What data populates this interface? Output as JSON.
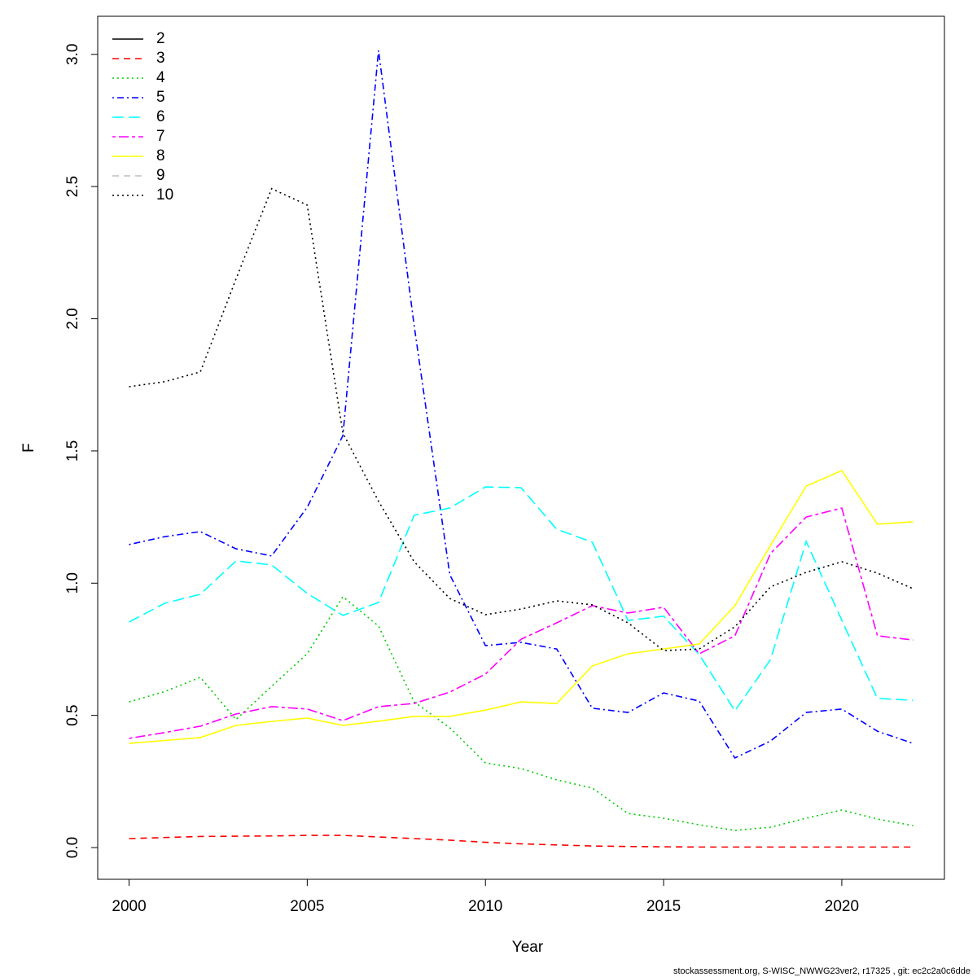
{
  "chart_data": {
    "type": "line",
    "x_label": "Year",
    "y_label": "F",
    "footnote": "stockassessment.org, S-WISC_NWWG23ver2, r17325 , git: ec2c2a0c6dde",
    "x": [
      2000,
      2001,
      2002,
      2003,
      2004,
      2005,
      2006,
      2007,
      2008,
      2009,
      2010,
      2011,
      2012,
      2013,
      2014,
      2015,
      2016,
      2017,
      2018,
      2019,
      2020,
      2021,
      2022
    ],
    "xlim": [
      1999.12,
      2022.88
    ],
    "xticks": [
      2000,
      2005,
      2010,
      2015,
      2020
    ],
    "ylim": [
      -0.12,
      3.144
    ],
    "yticks": [
      {
        "value": 0,
        "label": "0.0"
      },
      {
        "value": 0.5,
        "label": "0.5"
      },
      {
        "value": 1,
        "label": "1.0"
      },
      {
        "value": 1.5,
        "label": "1.5"
      },
      {
        "value": 2,
        "label": "2.0"
      },
      {
        "value": 2.5,
        "label": "2.5"
      },
      {
        "value": 3,
        "label": "3.0"
      }
    ],
    "legend_position": "top-left",
    "series": [
      {
        "name": "2",
        "color": "#000000",
        "dash": "solid",
        "values": [
          null,
          null,
          null,
          null,
          null,
          null,
          null,
          null,
          null,
          null,
          null,
          null,
          null,
          null,
          null,
          null,
          null,
          null,
          null,
          null,
          null,
          null,
          null
        ]
      },
      {
        "name": "3",
        "color": "#ff0000",
        "dash": "dashed",
        "values": [
          0.034,
          0.038,
          0.042,
          0.043,
          0.044,
          0.046,
          0.046,
          0.04,
          0.034,
          0.028,
          0.02,
          0.014,
          0.01,
          0.006,
          0.004,
          0.003,
          0.002,
          0.002,
          0.002,
          0.002,
          0.002,
          0.002,
          0.002
        ]
      },
      {
        "name": "4",
        "color": "#00cd00",
        "dash": "dotted",
        "values": [
          0.551,
          0.59,
          0.644,
          0.484,
          0.61,
          0.733,
          0.949,
          0.838,
          0.551,
          0.453,
          0.32,
          0.299,
          0.256,
          0.225,
          0.129,
          0.111,
          0.086,
          0.065,
          0.077,
          0.111,
          0.142,
          0.108,
          0.083
        ]
      },
      {
        "name": "5",
        "color": "#0000ff",
        "dash": "dotdash",
        "values": [
          1.146,
          1.176,
          1.195,
          1.13,
          1.103,
          1.287,
          1.558,
          3.015,
          1.974,
          1.032,
          0.764,
          0.776,
          0.751,
          0.527,
          0.511,
          0.585,
          0.554,
          0.339,
          0.403,
          0.511,
          0.524,
          0.44,
          0.394
        ]
      },
      {
        "name": "6",
        "color": "#00ffff",
        "dash": "longdash",
        "values": [
          0.853,
          0.924,
          0.958,
          1.084,
          1.069,
          0.961,
          0.878,
          0.927,
          1.257,
          1.284,
          1.364,
          1.361,
          1.204,
          1.155,
          0.859,
          0.875,
          0.73,
          0.517,
          0.711,
          1.158,
          0.86,
          0.564,
          0.557
        ]
      },
      {
        "name": "7",
        "color": "#ff00ff",
        "dash": "twodash",
        "values": [
          0.413,
          0.435,
          0.459,
          0.505,
          0.533,
          0.524,
          0.48,
          0.533,
          0.545,
          0.588,
          0.656,
          0.788,
          0.85,
          0.915,
          0.887,
          0.909,
          0.733,
          0.801,
          1.112,
          1.25,
          1.284,
          0.801,
          0.785
        ]
      },
      {
        "name": "8",
        "color": "#ffff00",
        "dash": "solid",
        "values": [
          0.394,
          0.405,
          0.416,
          0.462,
          0.477,
          0.49,
          0.462,
          0.478,
          0.496,
          0.496,
          0.52,
          0.551,
          0.545,
          0.687,
          0.733,
          0.751,
          0.77,
          0.915,
          1.143,
          1.367,
          1.426,
          1.223,
          1.232
        ]
      },
      {
        "name": "9",
        "color": "#bebebe",
        "dash": "dashed",
        "values": [
          null,
          null,
          null,
          null,
          null,
          null,
          null,
          null,
          null,
          null,
          null,
          null,
          null,
          null,
          null,
          null,
          null,
          null,
          null,
          null,
          null,
          null,
          null
        ]
      },
      {
        "name": "10",
        "color": "#000000",
        "dash": "dotted",
        "values": [
          1.743,
          1.762,
          1.799,
          2.15,
          2.492,
          2.43,
          1.568,
          1.31,
          1.081,
          0.942,
          0.881,
          0.902,
          0.933,
          0.918,
          0.85,
          0.745,
          0.751,
          0.835,
          0.986,
          1.041,
          1.081,
          1.038,
          0.979
        ]
      }
    ]
  }
}
